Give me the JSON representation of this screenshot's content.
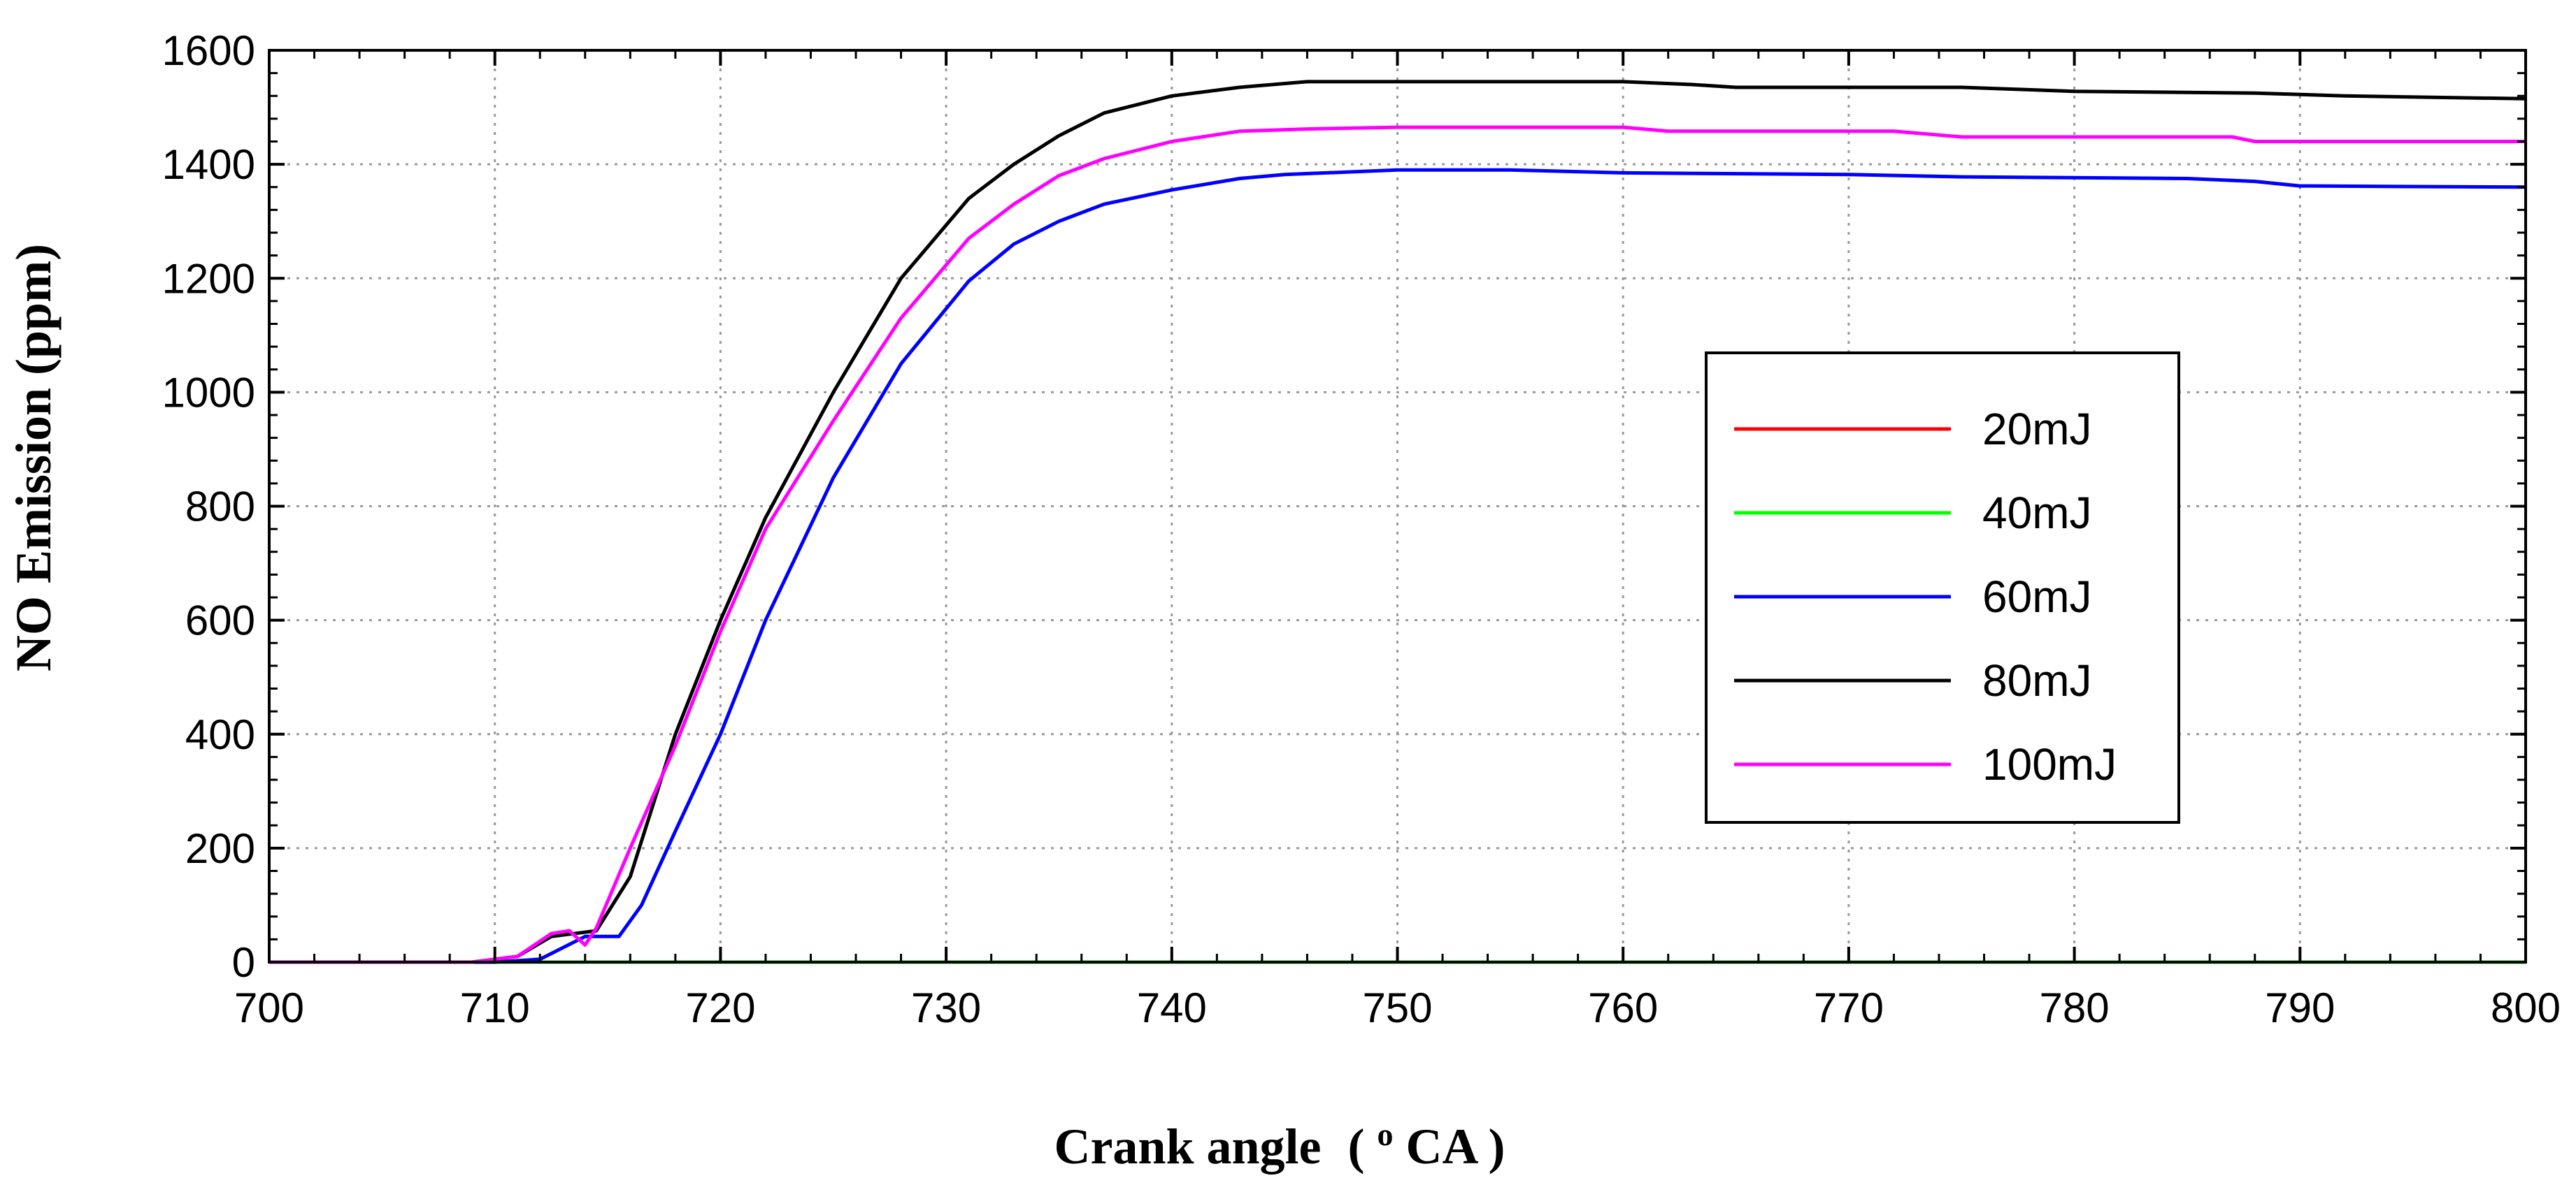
{
  "chart_data": {
    "type": "line",
    "title": "",
    "xlabel": "Crank angle",
    "xlabel_unit_sup": "o",
    "xlabel_unit": "CA",
    "ylabel": "NO Emission (ppm)",
    "xlim": [
      700,
      800
    ],
    "ylim": [
      0,
      1600
    ],
    "x_ticks": [
      700,
      710,
      720,
      730,
      740,
      750,
      760,
      770,
      780,
      790,
      800
    ],
    "y_ticks": [
      0,
      200,
      400,
      600,
      800,
      1000,
      1200,
      1400,
      1600
    ],
    "grid": "dotted",
    "legend_position": "center-right",
    "series": [
      {
        "name": "20mJ",
        "color": "#ff0000",
        "points": [
          [
            700,
            0
          ],
          [
            800,
            0
          ]
        ]
      },
      {
        "name": "40mJ",
        "color": "#00ff00",
        "points": [
          [
            700,
            0
          ],
          [
            800,
            0
          ]
        ]
      },
      {
        "name": "60mJ",
        "color": "#0000ff",
        "points": [
          [
            700,
            0
          ],
          [
            710,
            0
          ],
          [
            712,
            5
          ],
          [
            714,
            45
          ],
          [
            715.5,
            45
          ],
          [
            716.5,
            100
          ],
          [
            718,
            230
          ],
          [
            720,
            400
          ],
          [
            722,
            600
          ],
          [
            725,
            850
          ],
          [
            728,
            1050
          ],
          [
            731,
            1195
          ],
          [
            733,
            1260
          ],
          [
            735,
            1300
          ],
          [
            737,
            1330
          ],
          [
            740,
            1355
          ],
          [
            743,
            1375
          ],
          [
            745,
            1382
          ],
          [
            750,
            1390
          ],
          [
            755,
            1390
          ],
          [
            760,
            1385
          ],
          [
            770,
            1382
          ],
          [
            775,
            1378
          ],
          [
            785,
            1375
          ],
          [
            788,
            1370
          ],
          [
            790,
            1362
          ],
          [
            800,
            1360
          ]
        ]
      },
      {
        "name": "80mJ",
        "color": "#000000",
        "points": [
          [
            700,
            0
          ],
          [
            709,
            0
          ],
          [
            711,
            10
          ],
          [
            712.5,
            45
          ],
          [
            713.5,
            50
          ],
          [
            714.5,
            55
          ],
          [
            716,
            150
          ],
          [
            718,
            400
          ],
          [
            720,
            600
          ],
          [
            722,
            780
          ],
          [
            725,
            1000
          ],
          [
            728,
            1200
          ],
          [
            731,
            1340
          ],
          [
            733,
            1400
          ],
          [
            735,
            1450
          ],
          [
            737,
            1490
          ],
          [
            740,
            1520
          ],
          [
            743,
            1535
          ],
          [
            746,
            1545
          ],
          [
            750,
            1545
          ],
          [
            755,
            1545
          ],
          [
            760,
            1545
          ],
          [
            763,
            1540
          ],
          [
            765,
            1535
          ],
          [
            775,
            1535
          ],
          [
            780,
            1528
          ],
          [
            788,
            1525
          ],
          [
            792,
            1520
          ],
          [
            800,
            1515
          ]
        ]
      },
      {
        "name": "100mJ",
        "color": "#ff00ff",
        "points": [
          [
            700,
            0
          ],
          [
            709,
            0
          ],
          [
            711,
            10
          ],
          [
            712.5,
            50
          ],
          [
            713.3,
            55
          ],
          [
            714,
            30
          ],
          [
            714.5,
            60
          ],
          [
            716,
            200
          ],
          [
            718,
            380
          ],
          [
            720,
            580
          ],
          [
            722,
            760
          ],
          [
            725,
            950
          ],
          [
            728,
            1130
          ],
          [
            731,
            1270
          ],
          [
            733,
            1330
          ],
          [
            735,
            1380
          ],
          [
            737,
            1410
          ],
          [
            740,
            1440
          ],
          [
            743,
            1458
          ],
          [
            746,
            1462
          ],
          [
            750,
            1465
          ],
          [
            755,
            1465
          ],
          [
            760,
            1465
          ],
          [
            762,
            1458
          ],
          [
            772,
            1458
          ],
          [
            775,
            1448
          ],
          [
            787,
            1448
          ],
          [
            788,
            1440
          ],
          [
            800,
            1440
          ]
        ]
      }
    ]
  }
}
